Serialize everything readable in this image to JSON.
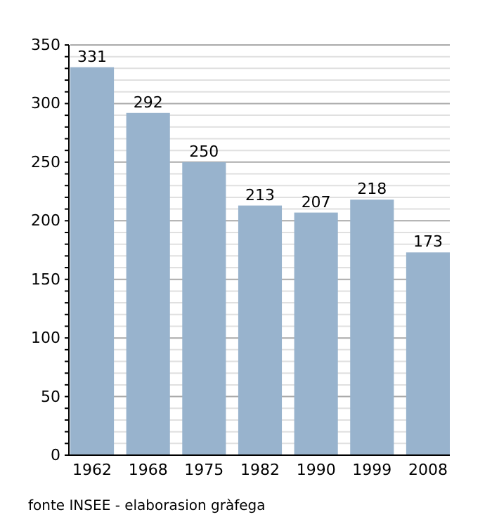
{
  "chart_data": {
    "type": "bar",
    "categories": [
      "1962",
      "1968",
      "1975",
      "1982",
      "1990",
      "1999",
      "2008"
    ],
    "values": [
      331,
      292,
      250,
      213,
      207,
      218,
      173
    ],
    "color": "#98b3cd",
    "data_labels": true,
    "ylim": [
      0,
      350
    ],
    "yticks": [
      0,
      {
        "value": 10,
        "label": null
      },
      {
        "value": 20,
        "label": null
      },
      {
        "value": 30,
        "label": null
      },
      {
        "value": 40,
        "label": null
      },
      50,
      {
        "value": 60,
        "label": null
      },
      {
        "value": 70,
        "label": null
      },
      {
        "value": 80,
        "label": null
      },
      {
        "value": 90,
        "label": null
      },
      100,
      {
        "value": 110,
        "label": null
      },
      {
        "value": 120,
        "label": null
      },
      {
        "value": 130,
        "label": null
      },
      {
        "value": 140,
        "label": null
      },
      150,
      {
        "value": 160,
        "label": null
      },
      {
        "value": 170,
        "label": null
      },
      {
        "value": 180,
        "label": null
      },
      {
        "value": 190,
        "label": null
      },
      200,
      {
        "value": 210,
        "label": null
      },
      {
        "value": 220,
        "label": null
      },
      {
        "value": 230,
        "label": null
      },
      {
        "value": 240,
        "label": null
      },
      250,
      {
        "value": 260,
        "label": null
      },
      {
        "value": 270,
        "label": null
      },
      {
        "value": 280,
        "label": null
      },
      {
        "value": 290,
        "label": null
      },
      300,
      {
        "value": 310,
        "label": null
      },
      {
        "value": 320,
        "label": null
      },
      {
        "value": 330,
        "label": null
      },
      {
        "value": 340,
        "label": null
      },
      350
    ],
    "grid": true,
    "annotations": [
      "fonte INSEE - elaborasion gràfega"
    ]
  }
}
